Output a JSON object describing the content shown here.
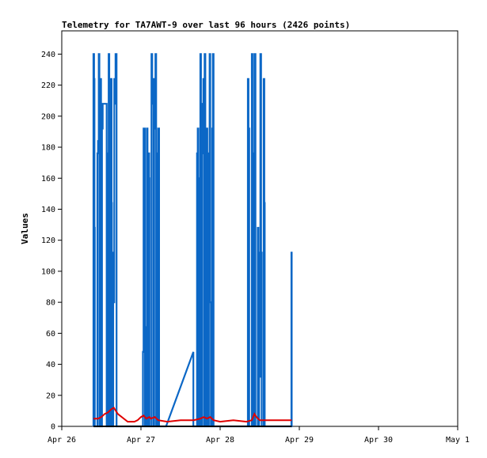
{
  "chart_data": {
    "type": "line",
    "title": "Telemetry for TA7AWT-9 over last 96 hours (2426 points)",
    "xlabel": "",
    "ylabel": "Values",
    "ylim": [
      0,
      255
    ],
    "y_ticks": [
      0,
      20,
      40,
      60,
      80,
      100,
      120,
      140,
      160,
      180,
      200,
      220,
      240
    ],
    "xlim": [
      0,
      120
    ],
    "x_unit": "hours from Apr 26 00:00",
    "x_ticks": [
      {
        "x": 0,
        "label": "Apr 26"
      },
      {
        "x": 24,
        "label": "Apr 27"
      },
      {
        "x": 48,
        "label": "Apr 28"
      },
      {
        "x": 72,
        "label": "Apr 29"
      },
      {
        "x": 96,
        "label": "Apr 30"
      },
      {
        "x": 120,
        "label": "May 1"
      }
    ],
    "grid": false,
    "colors": {
      "primary": "#0b67c6",
      "secondary": "#e00000",
      "tertiary": "#000000"
    },
    "series": [
      {
        "color": "primary",
        "points": [
          [
            9.6,
            0
          ],
          [
            9.6,
            240
          ],
          [
            9.8,
            240
          ],
          [
            9.8,
            224
          ],
          [
            9.9,
            224
          ],
          [
            9.9,
            128
          ],
          [
            10.0,
            128
          ],
          [
            10.0,
            0
          ],
          [
            10.8,
            0
          ],
          [
            10.8,
            176
          ],
          [
            11.0,
            176
          ],
          [
            11.0,
            184
          ],
          [
            11.2,
            184
          ],
          [
            11.2,
            240
          ],
          [
            11.4,
            240
          ],
          [
            11.4,
            0
          ],
          [
            11.6,
            0
          ],
          [
            11.6,
            16
          ],
          [
            11.7,
            16
          ],
          [
            11.7,
            224
          ],
          [
            11.9,
            224
          ],
          [
            11.9,
            0
          ],
          [
            12.2,
            0
          ],
          [
            12.2,
            192
          ],
          [
            12.4,
            192
          ],
          [
            12.4,
            208
          ],
          [
            13.6,
            208
          ],
          [
            13.6,
            0
          ],
          [
            13.8,
            0
          ],
          [
            13.8,
            176
          ],
          [
            14.0,
            176
          ],
          [
            14.0,
            0
          ],
          [
            14.2,
            0
          ],
          [
            14.2,
            240
          ],
          [
            14.4,
            240
          ],
          [
            14.4,
            0
          ],
          [
            14.9,
            0
          ],
          [
            14.9,
            224
          ],
          [
            15.1,
            224
          ],
          [
            15.1,
            144
          ],
          [
            15.2,
            144
          ],
          [
            15.2,
            0
          ],
          [
            15.6,
            0
          ],
          [
            15.6,
            112
          ],
          [
            15.8,
            112
          ],
          [
            15.8,
            80
          ],
          [
            15.9,
            80
          ],
          [
            15.9,
            224
          ],
          [
            16.1,
            224
          ],
          [
            16.1,
            208
          ],
          [
            16.3,
            208
          ],
          [
            16.3,
            240
          ],
          [
            16.6,
            240
          ],
          [
            16.6,
            0
          ],
          [
            24.6,
            0
          ],
          [
            24.6,
            48
          ],
          [
            24.8,
            48
          ],
          [
            24.8,
            192
          ],
          [
            25.2,
            192
          ],
          [
            25.2,
            0
          ],
          [
            25.6,
            0
          ],
          [
            25.6,
            64
          ],
          [
            25.8,
            64
          ],
          [
            25.8,
            192
          ],
          [
            26.0,
            192
          ],
          [
            26.0,
            0
          ],
          [
            26.3,
            0
          ],
          [
            26.3,
            176
          ],
          [
            26.5,
            176
          ],
          [
            26.5,
            160
          ],
          [
            26.6,
            160
          ],
          [
            26.6,
            0
          ],
          [
            27.2,
            0
          ],
          [
            27.2,
            240
          ],
          [
            27.4,
            240
          ],
          [
            27.4,
            224
          ],
          [
            27.6,
            224
          ],
          [
            27.6,
            208
          ],
          [
            27.8,
            208
          ],
          [
            27.8,
            0
          ],
          [
            28.0,
            0
          ],
          [
            28.0,
            224
          ],
          [
            28.2,
            224
          ],
          [
            28.2,
            192
          ],
          [
            28.4,
            192
          ],
          [
            28.4,
            240
          ],
          [
            28.6,
            240
          ],
          [
            28.6,
            0
          ],
          [
            29.0,
            0
          ],
          [
            29.0,
            176
          ],
          [
            29.2,
            176
          ],
          [
            29.2,
            192
          ],
          [
            29.5,
            192
          ],
          [
            29.5,
            0
          ],
          [
            31.0,
            0
          ],
          [
            31.6,
            0
          ],
          [
            39.9,
            48
          ],
          [
            39.9,
            0
          ],
          [
            41.0,
            0
          ],
          [
            41.0,
            176
          ],
          [
            41.2,
            176
          ],
          [
            41.2,
            192
          ],
          [
            41.4,
            192
          ],
          [
            41.4,
            0
          ],
          [
            41.8,
            0
          ],
          [
            41.8,
            160
          ],
          [
            42.0,
            160
          ],
          [
            42.0,
            240
          ],
          [
            42.2,
            240
          ],
          [
            42.2,
            0
          ],
          [
            42.5,
            0
          ],
          [
            42.5,
            176
          ],
          [
            42.7,
            176
          ],
          [
            42.7,
            208
          ],
          [
            42.9,
            208
          ],
          [
            42.9,
            224
          ],
          [
            43.1,
            224
          ],
          [
            43.1,
            0
          ],
          [
            43.3,
            0
          ],
          [
            43.3,
            240
          ],
          [
            43.5,
            240
          ],
          [
            43.5,
            0
          ],
          [
            43.9,
            0
          ],
          [
            43.9,
            192
          ],
          [
            44.1,
            192
          ],
          [
            44.1,
            120
          ],
          [
            44.3,
            120
          ],
          [
            44.3,
            0
          ],
          [
            44.6,
            0
          ],
          [
            44.6,
            176
          ],
          [
            44.8,
            176
          ],
          [
            44.8,
            240
          ],
          [
            45.0,
            240
          ],
          [
            45.0,
            80
          ],
          [
            45.2,
            80
          ],
          [
            45.2,
            0
          ],
          [
            45.6,
            0
          ],
          [
            45.6,
            192
          ],
          [
            45.8,
            192
          ],
          [
            45.8,
            240
          ],
          [
            46.0,
            240
          ],
          [
            46.0,
            0
          ],
          [
            56.4,
            0
          ],
          [
            56.4,
            224
          ],
          [
            56.6,
            224
          ],
          [
            56.6,
            192
          ],
          [
            56.8,
            192
          ],
          [
            56.8,
            0
          ],
          [
            57.6,
            0
          ],
          [
            57.6,
            240
          ],
          [
            57.8,
            240
          ],
          [
            57.8,
            176
          ],
          [
            58.0,
            176
          ],
          [
            58.0,
            0
          ],
          [
            58.4,
            0
          ],
          [
            58.4,
            240
          ],
          [
            58.7,
            240
          ],
          [
            58.7,
            0
          ],
          [
            59.4,
            0
          ],
          [
            59.4,
            128
          ],
          [
            59.6,
            128
          ],
          [
            59.6,
            0
          ],
          [
            59.8,
            0
          ],
          [
            59.8,
            112
          ],
          [
            60.0,
            112
          ],
          [
            60.0,
            32
          ],
          [
            60.2,
            32
          ],
          [
            60.2,
            240
          ],
          [
            60.4,
            240
          ],
          [
            60.4,
            112
          ],
          [
            60.6,
            112
          ],
          [
            60.6,
            0
          ],
          [
            61.2,
            0
          ],
          [
            61.2,
            224
          ],
          [
            61.4,
            224
          ],
          [
            61.4,
            144
          ],
          [
            61.5,
            144
          ],
          [
            61.5,
            0
          ],
          [
            69.6,
            0
          ],
          [
            69.6,
            112
          ],
          [
            69.7,
            112
          ],
          [
            69.7,
            0
          ]
        ]
      },
      {
        "color": "secondary",
        "points": [
          [
            9.6,
            5
          ],
          [
            11.0,
            5
          ],
          [
            12.0,
            6
          ],
          [
            13.0,
            8
          ],
          [
            14.0,
            9
          ],
          [
            15.0,
            11
          ],
          [
            15.8,
            12
          ],
          [
            16.4,
            10
          ],
          [
            17.0,
            8
          ],
          [
            20.0,
            3
          ],
          [
            22.0,
            3
          ],
          [
            23.0,
            4
          ],
          [
            24.0,
            6
          ],
          [
            24.8,
            7
          ],
          [
            25.6,
            5
          ],
          [
            26.6,
            6
          ],
          [
            27.0,
            5
          ],
          [
            28.2,
            6
          ],
          [
            29.2,
            4
          ],
          [
            32.0,
            3
          ],
          [
            36.0,
            4
          ],
          [
            40.0,
            4
          ],
          [
            42.0,
            5
          ],
          [
            43.0,
            6
          ],
          [
            44.0,
            5
          ],
          [
            45.0,
            6
          ],
          [
            46.0,
            4
          ],
          [
            48.0,
            3
          ],
          [
            52.0,
            4
          ],
          [
            56.0,
            3
          ],
          [
            57.6,
            4
          ],
          [
            58.4,
            8
          ],
          [
            59.0,
            6
          ],
          [
            60.0,
            4
          ],
          [
            61.0,
            4
          ],
          [
            64.0,
            4
          ],
          [
            69.7,
            4
          ]
        ]
      },
      {
        "color": "tertiary",
        "points": [
          [
            9.6,
            0
          ],
          [
            69.7,
            0
          ]
        ]
      }
    ]
  }
}
